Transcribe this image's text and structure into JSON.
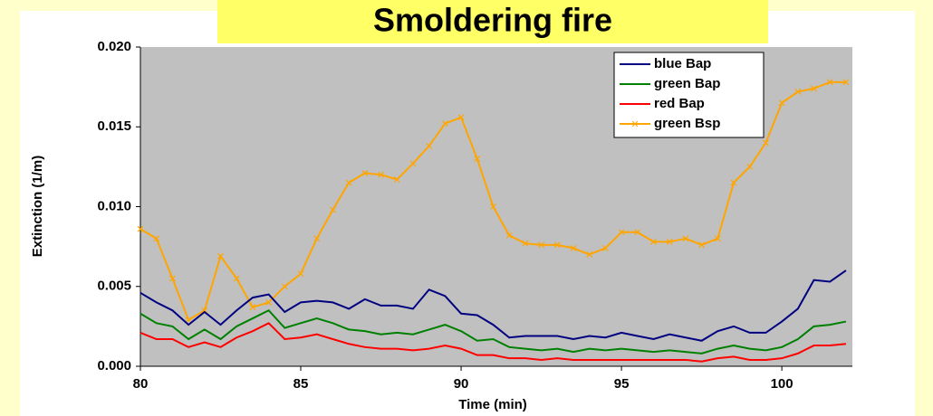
{
  "chart_data": {
    "type": "line",
    "title": "Smoldering fire",
    "xlabel": "Time (min)",
    "ylabel": "Extinction (1/m)",
    "xlim": [
      80,
      102.2
    ],
    "xticks": [
      80,
      85,
      90,
      95,
      100
    ],
    "ylim": [
      0,
      0.02
    ],
    "yticks": [
      {
        "value": 0,
        "label": "0.000"
      },
      0.005,
      {
        "value": 0.01,
        "label": "0.010"
      },
      0.015,
      {
        "value": 0.02,
        "label": "0.020"
      }
    ],
    "x": [
      80,
      80.5,
      81,
      81.5,
      82,
      82.5,
      83,
      83.5,
      84,
      84.5,
      85,
      85.5,
      86,
      86.5,
      87,
      87.5,
      88,
      88.5,
      89,
      89.5,
      90,
      90.5,
      91,
      91.5,
      92,
      92.5,
      93,
      93.5,
      94,
      94.5,
      95,
      95.5,
      96,
      96.5,
      97,
      97.5,
      98,
      98.5,
      99,
      99.5,
      100,
      100.5,
      101,
      101.5,
      102
    ],
    "series": [
      {
        "name": "blue Bap",
        "color": "#000080",
        "values": [
          0.0046,
          0.004,
          0.0035,
          0.0026,
          0.0034,
          0.0026,
          0.0035,
          0.0043,
          0.0045,
          0.0034,
          0.004,
          0.0041,
          0.004,
          0.0036,
          0.0042,
          0.0038,
          0.0038,
          0.0036,
          0.0048,
          0.0044,
          0.0033,
          0.0032,
          0.0026,
          0.0018,
          0.0019,
          0.0019,
          0.0019,
          0.0017,
          0.0019,
          0.0018,
          0.0021,
          0.0019,
          0.0017,
          0.002,
          0.0018,
          0.0016,
          0.0022,
          0.0025,
          0.0021,
          0.0021,
          0.0028,
          0.0036,
          0.0054,
          0.0053,
          0.006
        ]
      },
      {
        "name": "green Bap",
        "color": "#008000",
        "values": [
          0.0033,
          0.0027,
          0.0025,
          0.0017,
          0.0023,
          0.0017,
          0.0025,
          0.003,
          0.0035,
          0.0024,
          0.0027,
          0.003,
          0.0027,
          0.0023,
          0.0022,
          0.002,
          0.0021,
          0.002,
          0.0023,
          0.0026,
          0.0022,
          0.0016,
          0.0017,
          0.0012,
          0.0011,
          0.001,
          0.0011,
          0.0009,
          0.0011,
          0.001,
          0.0011,
          0.001,
          0.0009,
          0.001,
          0.0009,
          0.0008,
          0.0011,
          0.0013,
          0.0011,
          0.001,
          0.0012,
          0.0017,
          0.0025,
          0.0026,
          0.0028
        ]
      },
      {
        "name": "red Bap",
        "color": "#ff0000",
        "values": [
          0.0021,
          0.0017,
          0.0017,
          0.0012,
          0.0015,
          0.0012,
          0.0018,
          0.0022,
          0.0027,
          0.0017,
          0.0018,
          0.002,
          0.0017,
          0.0014,
          0.0012,
          0.0011,
          0.0011,
          0.001,
          0.0011,
          0.0013,
          0.0011,
          0.0007,
          0.0007,
          0.0005,
          0.0005,
          0.0004,
          0.0005,
          0.0004,
          0.0004,
          0.0004,
          0.0004,
          0.0004,
          0.0004,
          0.0004,
          0.0004,
          0.0003,
          0.0005,
          0.0006,
          0.0004,
          0.0004,
          0.0005,
          0.0008,
          0.0013,
          0.0013,
          0.0014
        ]
      },
      {
        "name": "green Bsp",
        "color": "#ffa500",
        "marker": "x",
        "values": [
          0.0086,
          0.008,
          0.0055,
          0.0029,
          0.0035,
          0.0069,
          0.0055,
          0.0037,
          0.004,
          0.005,
          0.0058,
          0.008,
          0.0098,
          0.0115,
          0.0121,
          0.012,
          0.0117,
          0.0127,
          0.0138,
          0.0152,
          0.0156,
          0.013,
          0.01,
          0.0082,
          0.0077,
          0.0076,
          0.0076,
          0.0074,
          0.007,
          0.0074,
          0.0084,
          0.0084,
          0.0078,
          0.0078,
          0.008,
          0.0076,
          0.008,
          0.0115,
          0.0125,
          0.014,
          0.0165,
          0.0172,
          0.0174,
          0.0178,
          0.0178
        ]
      }
    ],
    "legend": "upper right"
  }
}
